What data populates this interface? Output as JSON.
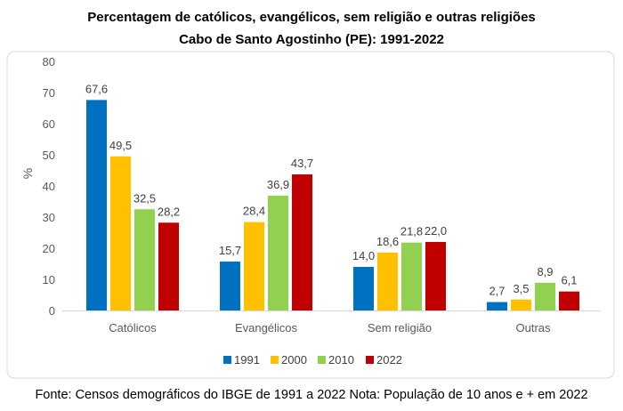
{
  "chart_data": {
    "type": "bar",
    "title": "Percentagem de católicos, evangélicos, sem religião e outras religiões",
    "subtitle": "Cabo de Santo Agostinho (PE): 1991-2022",
    "xlabel": "",
    "ylabel": "%",
    "ylim": [
      0,
      80
    ],
    "yticks": [
      0,
      10,
      20,
      30,
      40,
      50,
      60,
      70,
      80
    ],
    "grid": false,
    "legend_position": "bottom",
    "categories": [
      "Católicos",
      "Evangélicos",
      "Sem religião",
      "Outras"
    ],
    "series": [
      {
        "name": "1991",
        "color": "#0070C0",
        "values": [
          67.6,
          15.7,
          14.0,
          2.7
        ],
        "labels": [
          "67,6",
          "15,7",
          "14,0",
          "2,7"
        ]
      },
      {
        "name": "2000",
        "color": "#FFC000",
        "values": [
          49.5,
          28.4,
          18.6,
          3.5
        ],
        "labels": [
          "49,5",
          "28,4",
          "18,6",
          "3,5"
        ]
      },
      {
        "name": "2010",
        "color": "#92D050",
        "values": [
          32.5,
          36.9,
          21.8,
          8.9
        ],
        "labels": [
          "32,5",
          "36,9",
          "21,8",
          "8,9"
        ]
      },
      {
        "name": "2022",
        "color": "#C00000",
        "values": [
          28.2,
          43.7,
          22.0,
          6.1
        ],
        "labels": [
          "28,2",
          "43,7",
          "22,0",
          "6,1"
        ]
      }
    ]
  },
  "footer": "Fonte: Censos demográficos do IBGE de 1991 a 2022 Nota: População de 10 anos e + em 2022"
}
